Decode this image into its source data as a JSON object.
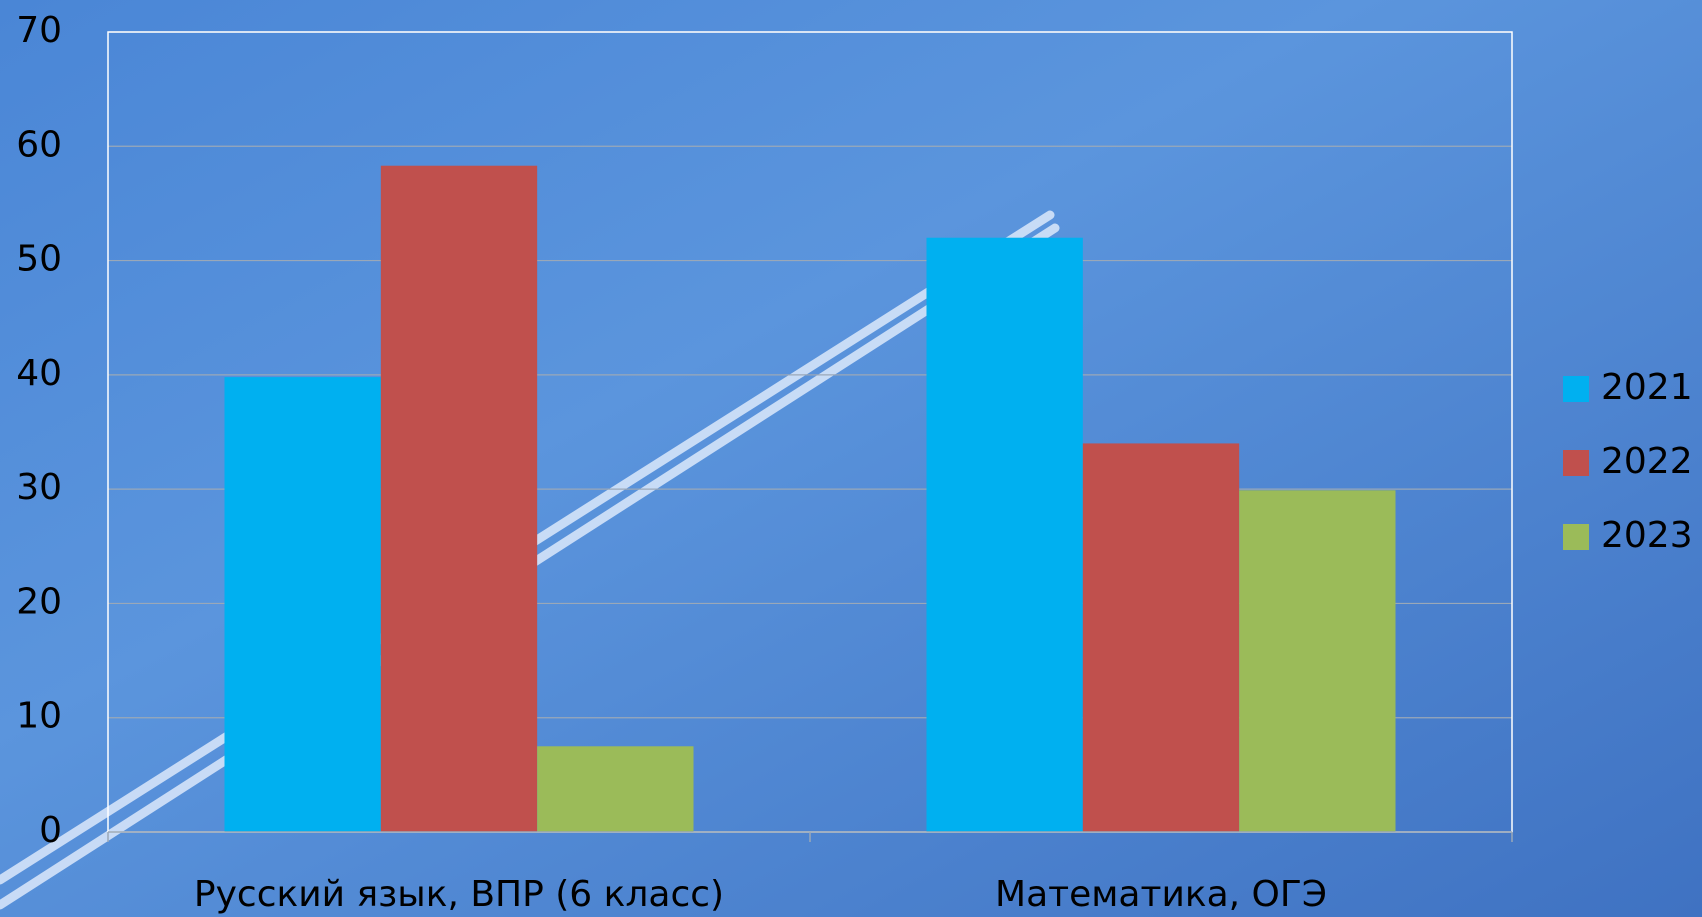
{
  "chart_data": {
    "type": "bar",
    "categories": [
      "Русский язык, ВПР (6 класс)",
      "Математика, ОГЭ"
    ],
    "series": [
      {
        "name": "2021",
        "color": "#00b0f0",
        "values": [
          39.8,
          52
        ]
      },
      {
        "name": "2022",
        "color": "#c0504d",
        "values": [
          58.3,
          34
        ]
      },
      {
        "name": "2023",
        "color": "#9bbb59",
        "values": [
          7.5,
          29.9
        ]
      }
    ],
    "ylim": [
      0,
      70
    ],
    "yticks": [
      0,
      10,
      20,
      30,
      40,
      50,
      60,
      70
    ],
    "grid": true,
    "legend": "right"
  }
}
